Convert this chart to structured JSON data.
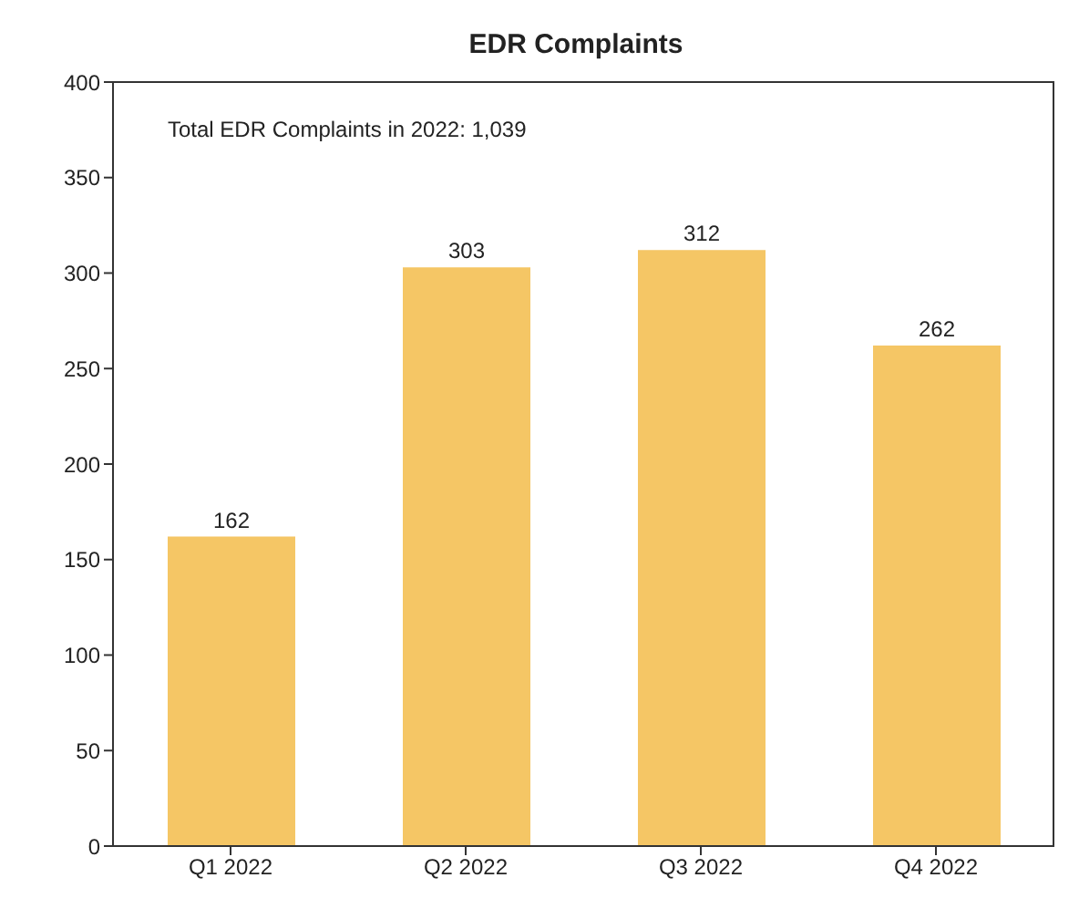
{
  "chart_data": {
    "type": "bar",
    "title": "EDR Complaints",
    "categories": [
      "Q1 2022",
      "Q2 2022",
      "Q3 2022",
      "Q4 2022"
    ],
    "values": [
      162,
      303,
      312,
      262
    ],
    "color": "#f5c665",
    "ylim": [
      0,
      400
    ],
    "yticks": [
      0,
      50,
      100,
      150,
      200,
      250,
      300,
      350,
      400
    ],
    "data_labels": true,
    "annotations": [
      "Total EDR Complaints in 2022: 1,039"
    ]
  }
}
